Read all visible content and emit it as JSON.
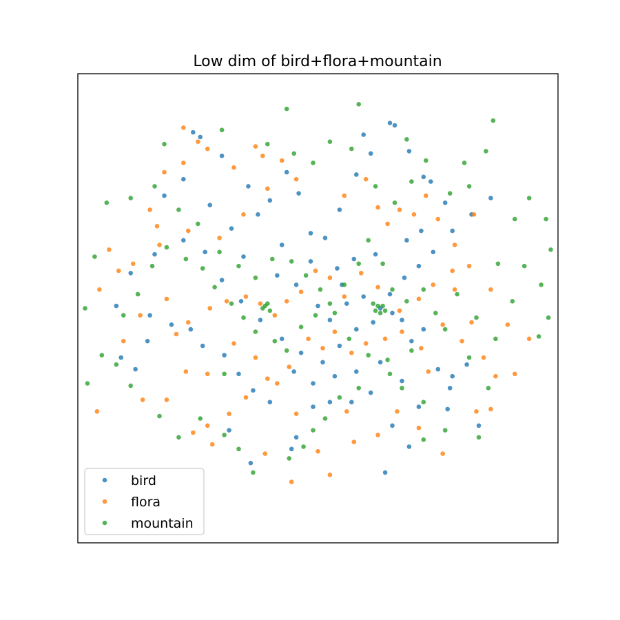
{
  "chart_data": {
    "type": "scatter",
    "title": "Low dim of bird+flora+mountain",
    "xlabel": "",
    "ylabel": "",
    "xlim": [
      -1.0,
      1.0
    ],
    "ylim": [
      -1.0,
      1.0
    ],
    "ticks_visible": false,
    "grid": false,
    "legend_position": "lower-left",
    "series": [
      {
        "name": "bird",
        "color": "#1f77b4",
        "points": [
          [
            -0.52,
            0.75
          ],
          [
            -0.49,
            0.73
          ],
          [
            -0.4,
            0.65
          ],
          [
            -0.29,
            0.52
          ],
          [
            -0.08,
            0.49
          ],
          [
            -0.03,
            0.32
          ],
          [
            0.19,
            0.74
          ],
          [
            0.3,
            0.79
          ],
          [
            0.32,
            0.78
          ],
          [
            0.38,
            0.67
          ],
          [
            0.44,
            0.56
          ],
          [
            0.47,
            0.54
          ],
          [
            0.53,
            0.45
          ],
          [
            0.43,
            0.33
          ],
          [
            0.37,
            0.29
          ],
          [
            0.24,
            0.23
          ],
          [
            0.15,
            0.21
          ],
          [
            0.08,
            0.17
          ],
          [
            0.1,
            0.1
          ],
          [
            0.19,
            0.05
          ],
          [
            0.26,
            0.0
          ],
          [
            0.31,
            -0.02
          ],
          [
            0.35,
            -0.05
          ],
          [
            0.44,
            -0.09
          ],
          [
            0.39,
            -0.14
          ],
          [
            0.5,
            -0.26
          ],
          [
            0.56,
            -0.29
          ],
          [
            0.62,
            -0.24
          ],
          [
            0.55,
            -0.34
          ],
          [
            0.67,
            -0.5
          ],
          [
            0.54,
            -0.43
          ],
          [
            0.31,
            -0.5
          ],
          [
            0.22,
            -0.36
          ],
          [
            0.14,
            -0.4
          ],
          [
            0.05,
            -0.4
          ],
          [
            -0.02,
            -0.42
          ],
          [
            -0.09,
            -0.55
          ],
          [
            -0.11,
            -0.6
          ],
          [
            -0.2,
            -0.4
          ],
          [
            -0.27,
            -0.35
          ],
          [
            -0.33,
            -0.28
          ],
          [
            -0.39,
            -0.2
          ],
          [
            -0.48,
            -0.16
          ],
          [
            -0.53,
            -0.09
          ],
          [
            -0.61,
            -0.07
          ],
          [
            -0.7,
            -0.03
          ],
          [
            -0.71,
            -0.14
          ],
          [
            -0.76,
            -0.26
          ],
          [
            -0.82,
            -0.21
          ],
          [
            -0.84,
            0.01
          ],
          [
            -0.78,
            0.15
          ],
          [
            -0.68,
            0.23
          ],
          [
            -0.56,
            0.29
          ],
          [
            -0.47,
            0.24
          ],
          [
            -0.4,
            0.12
          ],
          [
            -0.32,
            0.03
          ],
          [
            -0.24,
            -0.05
          ],
          [
            -0.15,
            -0.13
          ],
          [
            -0.07,
            -0.19
          ],
          [
            0.02,
            -0.23
          ],
          [
            0.09,
            -0.16
          ],
          [
            0.16,
            -0.09
          ],
          [
            0.23,
            -0.06
          ],
          [
            0.3,
            0.06
          ],
          [
            0.36,
            0.13
          ],
          [
            0.42,
            0.18
          ],
          [
            0.48,
            0.24
          ],
          [
            0.56,
            0.33
          ],
          [
            0.64,
            0.4
          ],
          [
            0.72,
            0.47
          ],
          [
            -0.64,
            0.48
          ],
          [
            -0.56,
            0.55
          ],
          [
            -0.45,
            0.44
          ],
          [
            -0.36,
            0.34
          ],
          [
            -0.25,
            0.4
          ],
          [
            -0.15,
            0.27
          ],
          [
            -0.09,
            0.1
          ],
          [
            0.0,
            0.01
          ],
          [
            0.05,
            -0.05
          ],
          [
            0.12,
            0.02
          ],
          [
            -0.03,
            0.2
          ],
          [
            0.03,
            0.3
          ],
          [
            0.09,
            0.42
          ],
          [
            0.16,
            0.57
          ],
          [
            0.22,
            0.66
          ],
          [
            -0.13,
            0.58
          ],
          [
            -0.2,
            0.46
          ],
          [
            -0.31,
            0.22
          ],
          [
            -0.17,
            0.14
          ],
          [
            -0.1,
            -0.27
          ],
          [
            -0.02,
            -0.32
          ],
          [
            0.07,
            -0.29
          ],
          [
            0.16,
            -0.27
          ],
          [
            0.26,
            -0.23
          ],
          [
            0.35,
            -0.31
          ],
          [
            0.42,
            -0.42
          ],
          [
            0.38,
            -0.59
          ],
          [
            0.28,
            -0.7
          ],
          [
            -0.28,
            -0.66
          ],
          [
            -0.37,
            -0.52
          ]
        ]
      },
      {
        "name": "flora",
        "color": "#ff7f0e",
        "points": [
          [
            -0.56,
            0.77
          ],
          [
            -0.5,
            0.71
          ],
          [
            -0.46,
            0.68
          ],
          [
            -0.35,
            0.6
          ],
          [
            -0.26,
            0.69
          ],
          [
            -0.23,
            0.65
          ],
          [
            -0.15,
            0.63
          ],
          [
            -0.09,
            0.55
          ],
          [
            -0.21,
            0.51
          ],
          [
            -0.31,
            0.4
          ],
          [
            -0.41,
            0.3
          ],
          [
            -0.54,
            0.33
          ],
          [
            -0.66,
            0.27
          ],
          [
            -0.77,
            0.19
          ],
          [
            -0.83,
            0.16
          ],
          [
            -0.87,
            0.25
          ],
          [
            -0.67,
            0.35
          ],
          [
            -0.7,
            0.42
          ],
          [
            -0.56,
            0.62
          ],
          [
            -0.64,
            0.58
          ],
          [
            0.11,
            0.48
          ],
          [
            0.2,
            0.55
          ],
          [
            0.25,
            0.43
          ],
          [
            0.29,
            0.36
          ],
          [
            0.34,
            0.42
          ],
          [
            0.4,
            0.4
          ],
          [
            0.45,
            0.48
          ],
          [
            0.5,
            0.38
          ],
          [
            0.57,
            0.27
          ],
          [
            0.63,
            0.18
          ],
          [
            0.56,
            0.16
          ],
          [
            0.48,
            0.1
          ],
          [
            0.42,
            0.04
          ],
          [
            0.34,
            -0.01
          ],
          [
            0.25,
            0.09
          ],
          [
            0.18,
            0.15
          ],
          [
            0.11,
            0.05
          ],
          [
            0.05,
            0.13
          ],
          [
            -0.01,
            0.16
          ],
          [
            -0.07,
            0.07
          ],
          [
            -0.13,
            0.03
          ],
          [
            -0.18,
            -0.03
          ],
          [
            -0.24,
            0.02
          ],
          [
            -0.3,
            0.05
          ],
          [
            -0.38,
            0.03
          ],
          [
            -0.45,
            0.0
          ],
          [
            -0.54,
            -0.06
          ],
          [
            -0.59,
            -0.11
          ],
          [
            -0.63,
            0.04
          ],
          [
            -0.74,
            -0.03
          ],
          [
            -0.81,
            -0.14
          ],
          [
            -0.92,
            -0.44
          ],
          [
            -0.73,
            -0.39
          ],
          [
            -0.63,
            -0.39
          ],
          [
            -0.52,
            -0.53
          ],
          [
            -0.44,
            -0.58
          ],
          [
            -0.37,
            -0.45
          ],
          [
            -0.3,
            -0.38
          ],
          [
            -0.21,
            -0.3
          ],
          [
            -0.12,
            -0.25
          ],
          [
            -0.04,
            -0.13
          ],
          [
            0.02,
            -0.17
          ],
          [
            0.07,
            -0.1
          ],
          [
            0.14,
            -0.19
          ],
          [
            0.2,
            -0.15
          ],
          [
            0.28,
            -0.13
          ],
          [
            0.35,
            -0.1
          ],
          [
            0.43,
            -0.17
          ],
          [
            0.52,
            -0.07
          ],
          [
            0.6,
            -0.14
          ],
          [
            0.69,
            -0.21
          ],
          [
            0.74,
            -0.29
          ],
          [
            0.82,
            -0.28
          ],
          [
            0.88,
            -0.13
          ],
          [
            0.79,
            -0.07
          ],
          [
            0.64,
            -0.06
          ],
          [
            0.57,
            0.08
          ],
          [
            0.46,
            -0.27
          ],
          [
            0.33,
            -0.44
          ],
          [
            0.25,
            -0.54
          ],
          [
            0.15,
            -0.57
          ],
          [
            0.05,
            -0.71
          ],
          [
            0.0,
            -0.61
          ],
          [
            -0.09,
            -0.45
          ],
          [
            -0.17,
            -0.32
          ],
          [
            -0.26,
            -0.21
          ],
          [
            -0.35,
            -0.15
          ],
          [
            -0.46,
            -0.28
          ],
          [
            -0.55,
            -0.27
          ],
          [
            -0.22,
            -0.62
          ],
          [
            -0.11,
            -0.74
          ],
          [
            0.12,
            -0.44
          ],
          [
            0.42,
            -0.51
          ],
          [
            0.52,
            -0.62
          ],
          [
            0.66,
            -0.44
          ],
          [
            0.72,
            -0.43
          ],
          [
            -0.91,
            0.08
          ],
          [
            0.65,
            0.4
          ],
          [
            0.72,
            0.08
          ],
          [
            -0.46,
            -0.5
          ]
        ]
      },
      {
        "name": "mountain",
        "color": "#2ca02c",
        "points": [
          [
            -0.13,
            0.85
          ],
          [
            0.17,
            0.87
          ],
          [
            0.37,
            0.72
          ],
          [
            0.45,
            0.63
          ],
          [
            0.7,
            0.67
          ],
          [
            0.73,
            0.8
          ],
          [
            0.61,
            0.62
          ],
          [
            0.82,
            0.38
          ],
          [
            0.95,
            0.38
          ],
          [
            0.97,
            0.25
          ],
          [
            0.86,
            0.18
          ],
          [
            0.75,
            0.19
          ],
          [
            0.58,
            0.06
          ],
          [
            0.66,
            -0.04
          ],
          [
            0.92,
            -0.12
          ],
          [
            0.81,
            0.03
          ],
          [
            0.74,
            -0.13
          ],
          [
            0.63,
            -0.21
          ],
          [
            0.71,
            -0.34
          ],
          [
            0.67,
            -0.55
          ],
          [
            0.53,
            -0.52
          ],
          [
            0.44,
            -0.4
          ],
          [
            0.35,
            -0.34
          ],
          [
            0.3,
            -0.28
          ],
          [
            0.17,
            -0.34
          ],
          [
            0.09,
            -0.38
          ],
          [
            0.03,
            -0.47
          ],
          [
            -0.02,
            -0.52
          ],
          [
            -0.06,
            -0.59
          ],
          [
            -0.12,
            -0.64
          ],
          [
            -0.27,
            -0.7
          ],
          [
            -0.33,
            -0.6
          ],
          [
            -0.39,
            -0.54
          ],
          [
            -0.49,
            -0.47
          ],
          [
            -0.58,
            -0.55
          ],
          [
            -0.66,
            -0.46
          ],
          [
            -0.78,
            -0.33
          ],
          [
            -0.84,
            -0.24
          ],
          [
            -0.96,
            -0.32
          ],
          [
            -0.81,
            -0.03
          ],
          [
            -0.75,
            0.06
          ],
          [
            -0.69,
            0.18
          ],
          [
            -0.63,
            0.26
          ],
          [
            -0.55,
            0.21
          ],
          [
            -0.48,
            0.17
          ],
          [
            -0.43,
            0.09
          ],
          [
            -0.36,
            0.02
          ],
          [
            -0.31,
            -0.04
          ],
          [
            -0.26,
            -0.1
          ],
          [
            -0.18,
            -0.14
          ],
          [
            -0.13,
            -0.18
          ],
          [
            -0.07,
            -0.08
          ],
          [
            -0.01,
            -0.03
          ],
          [
            0.05,
            0.02
          ],
          [
            0.11,
            0.1
          ],
          [
            0.17,
            0.19
          ],
          [
            0.21,
            0.29
          ],
          [
            0.27,
            0.19
          ],
          [
            0.31,
            0.08
          ],
          [
            0.37,
            0.03
          ],
          [
            0.44,
            0.08
          ],
          [
            0.49,
            -0.02
          ],
          [
            0.53,
            -0.09
          ],
          [
            0.39,
            -0.18
          ],
          [
            0.29,
            -0.22
          ],
          [
            0.21,
            -0.2
          ],
          [
            0.13,
            -0.13
          ],
          [
            0.07,
            -0.02
          ],
          [
            0.01,
            0.08
          ],
          [
            -0.05,
            0.14
          ],
          [
            -0.11,
            0.2
          ],
          [
            -0.19,
            0.21
          ],
          [
            -0.26,
            0.13
          ],
          [
            -0.33,
            0.18
          ],
          [
            -0.41,
            0.24
          ],
          [
            -0.5,
            0.36
          ],
          [
            -0.58,
            0.42
          ],
          [
            -0.68,
            0.52
          ],
          [
            -0.78,
            0.47
          ],
          [
            -0.88,
            0.45
          ],
          [
            -0.93,
            0.22
          ],
          [
            -0.97,
            0.0
          ],
          [
            -0.9,
            -0.2
          ],
          [
            -0.64,
            0.7
          ],
          [
            -0.4,
            0.76
          ],
          [
            -0.21,
            0.7
          ],
          [
            -0.1,
            0.66
          ],
          [
            -0.02,
            0.62
          ],
          [
            0.05,
            0.71
          ],
          [
            0.14,
            0.68
          ],
          [
            0.24,
            0.52
          ],
          [
            0.32,
            0.45
          ],
          [
            0.39,
            0.54
          ],
          [
            0.55,
            0.49
          ],
          [
            0.63,
            0.52
          ],
          [
            0.88,
            0.47
          ],
          [
            0.93,
            0.1
          ],
          [
            0.96,
            -0.04
          ],
          [
            -0.22,
            0.01
          ],
          [
            0.26,
            -0.02
          ],
          [
            -0.23,
            0.0
          ],
          [
            -0.2,
            -0.01
          ],
          [
            0.25,
            0.01
          ],
          [
            0.27,
            0.01
          ],
          [
            0.24,
            -0.01
          ],
          [
            -0.21,
            0.02
          ],
          [
            0.28,
            -0.01
          ],
          [
            0.23,
            0.02
          ],
          [
            -0.39,
            -0.28
          ],
          [
            0.44,
            -0.56
          ]
        ]
      }
    ]
  }
}
